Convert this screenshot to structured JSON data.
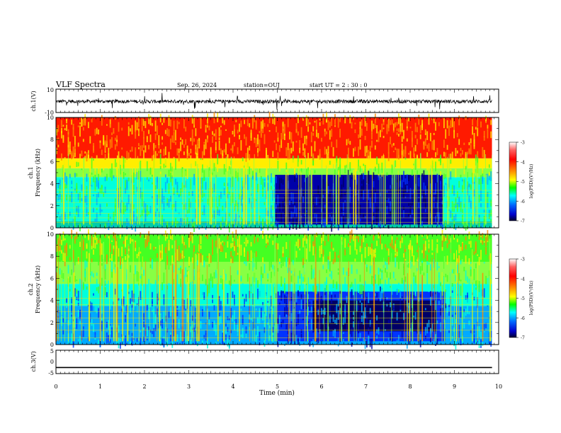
{
  "header": {
    "title": "VLF Spectra",
    "date": "Sep. 26, 2024",
    "station": "station=OUJ",
    "start": "start UT =  2 : 30 : 0"
  },
  "colorbar": {
    "label": "log(PSD)(V²/Hz)",
    "ticks": [
      "-3",
      "-4",
      "-5",
      "-6",
      "-7"
    ],
    "colors": [
      "#ffffff",
      "#ff0000",
      "#ff8c00",
      "#ffff00",
      "#00ff00",
      "#00ffff",
      "#0080ff",
      "#0000ff",
      "#000040"
    ]
  },
  "chart_data": [
    {
      "type": "line",
      "name": "ch1-waveform",
      "ylabel": "ch.1(V)",
      "ylim": [
        -10,
        10
      ],
      "ytick_labels": [
        "10",
        "-10"
      ],
      "xlim": [
        0,
        10
      ],
      "description_of_values": "noisy voltage trace centered near -0.5 V, amplitude ~±2 V with spikes to ±7 V",
      "baseline": -0.5
    },
    {
      "type": "heatmap",
      "name": "ch1-spectrogram",
      "ylabel": "ch.1\nFrequency (kHz)",
      "ylim": [
        0,
        10
      ],
      "ytick_labels": [
        "0",
        "2",
        "4",
        "6",
        "8",
        "10"
      ],
      "xlim": [
        0,
        10
      ],
      "high_band_kHz": [
        5.5,
        10
      ],
      "quiet_interval_min": [
        4.95,
        8.75
      ],
      "quiet_top_kHz": 4.8,
      "data_end_min": 9.85
    },
    {
      "type": "heatmap",
      "name": "ch2-spectrogram",
      "ylabel": "ch.2\nFrequency (kHz)",
      "ylim": [
        0,
        10
      ],
      "ytick_labels": [
        "0",
        "2",
        "4",
        "6",
        "8",
        "10"
      ],
      "xlim": [
        0,
        10
      ],
      "quiet_interval_min": [
        5.0,
        8.8
      ],
      "data_end_min": 9.85
    },
    {
      "type": "line",
      "name": "ch3-waveform",
      "ylabel": "ch.3(V)",
      "ylim": [
        -5,
        5
      ],
      "ytick_labels": [
        "5",
        "0",
        "-5"
      ],
      "xlim": [
        0,
        10
      ],
      "values": [
        [
          0,
          -2.4
        ],
        [
          9.85,
          -2.4
        ]
      ]
    }
  ],
  "xaxis": {
    "label": "Time (min)",
    "ticks": [
      "0",
      "1",
      "2",
      "3",
      "4",
      "5",
      "6",
      "7",
      "8",
      "9",
      "10"
    ]
  }
}
